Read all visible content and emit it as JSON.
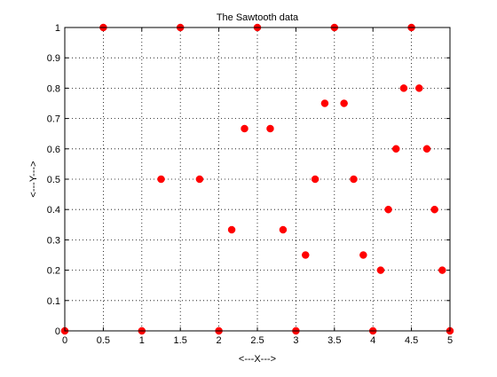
{
  "chart_data": {
    "type": "scatter",
    "title": "The Sawtooth data",
    "xlabel": "<---X--->",
    "ylabel": "<---Y--->",
    "xlim": [
      0,
      5
    ],
    "ylim": [
      0,
      1
    ],
    "xticks": [
      "0",
      "0.5",
      "1",
      "1.5",
      "2",
      "2.5",
      "3",
      "3.5",
      "4",
      "4.5",
      "5"
    ],
    "xtick_values": [
      0,
      0.5,
      1,
      1.5,
      2,
      2.5,
      3,
      3.5,
      4,
      4.5,
      5
    ],
    "yticks": [
      "0",
      "0.1",
      "0.2",
      "0.3",
      "0.4",
      "0.5",
      "0.6",
      "0.7",
      "0.8",
      "0.9",
      "1"
    ],
    "ytick_values": [
      0,
      0.1,
      0.2,
      0.3,
      0.4,
      0.5,
      0.6,
      0.7,
      0.8,
      0.9,
      1
    ],
    "grid": true,
    "marker_color": "#ff0000",
    "marker": "circle",
    "series": [
      {
        "points": [
          {
            "x": 0,
            "y": 0
          },
          {
            "x": 0.5,
            "y": 1
          },
          {
            "x": 1,
            "y": 0
          },
          {
            "x": 1.25,
            "y": 0.5
          },
          {
            "x": 1.5,
            "y": 1
          },
          {
            "x": 1.75,
            "y": 0.5
          },
          {
            "x": 2,
            "y": 0
          },
          {
            "x": 2.1667,
            "y": 0.3333
          },
          {
            "x": 2.3333,
            "y": 0.6667
          },
          {
            "x": 2.5,
            "y": 1
          },
          {
            "x": 2.6667,
            "y": 0.6667
          },
          {
            "x": 2.8333,
            "y": 0.3333
          },
          {
            "x": 3,
            "y": 0
          },
          {
            "x": 3.125,
            "y": 0.25
          },
          {
            "x": 3.25,
            "y": 0.5
          },
          {
            "x": 3.375,
            "y": 0.75
          },
          {
            "x": 3.5,
            "y": 1
          },
          {
            "x": 3.625,
            "y": 0.75
          },
          {
            "x": 3.75,
            "y": 0.5
          },
          {
            "x": 3.875,
            "y": 0.25
          },
          {
            "x": 4,
            "y": 0
          },
          {
            "x": 4.1,
            "y": 0.2
          },
          {
            "x": 4.2,
            "y": 0.4
          },
          {
            "x": 4.3,
            "y": 0.6
          },
          {
            "x": 4.4,
            "y": 0.8
          },
          {
            "x": 4.5,
            "y": 1
          },
          {
            "x": 4.6,
            "y": 0.8
          },
          {
            "x": 4.7,
            "y": 0.6
          },
          {
            "x": 4.8,
            "y": 0.4
          },
          {
            "x": 4.9,
            "y": 0.2
          },
          {
            "x": 5,
            "y": 0
          }
        ]
      }
    ]
  }
}
